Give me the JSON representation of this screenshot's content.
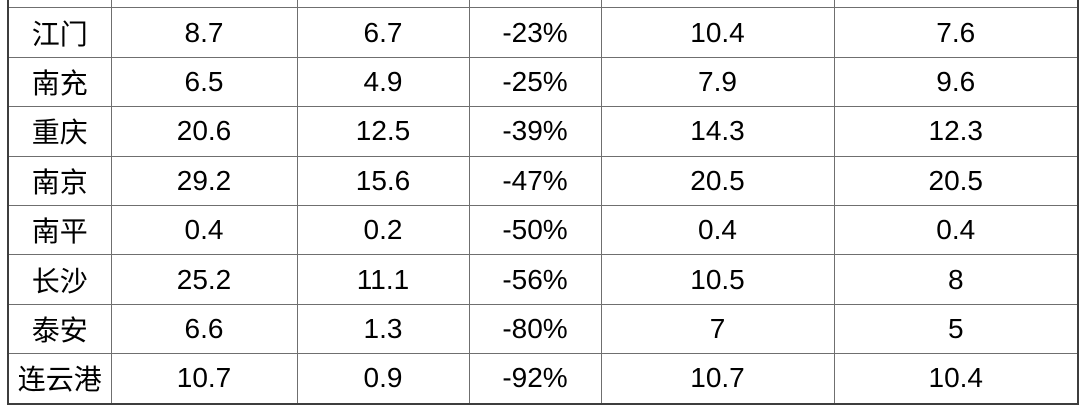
{
  "colors": {
    "green_text": "#2bb45a",
    "black_text": "#000000",
    "grid_line": "#6f6f6f",
    "outer_border": "#3d3d3d",
    "background": "#ffffff"
  },
  "table": {
    "pct_column_index": 3,
    "rows": [
      {
        "cells": [
          "江门",
          "8.7",
          "6.7",
          "-23%",
          "10.4",
          "7.6"
        ],
        "pct_green": false
      },
      {
        "cells": [
          "南充",
          "6.5",
          "4.9",
          "-25%",
          "7.9",
          "9.6"
        ],
        "pct_green": false
      },
      {
        "cells": [
          "重庆",
          "20.6",
          "12.5",
          "-39%",
          "14.3",
          "12.3"
        ],
        "pct_green": false
      },
      {
        "cells": [
          "南京",
          "29.2",
          "15.6",
          "-47%",
          "20.5",
          "20.5"
        ],
        "pct_green": true
      },
      {
        "cells": [
          "南平",
          "0.4",
          "0.2",
          "-50%",
          "0.4",
          "0.4"
        ],
        "pct_green": true
      },
      {
        "cells": [
          "长沙",
          "25.2",
          "11.1",
          "-56%",
          "10.5",
          "8"
        ],
        "pct_green": true
      },
      {
        "cells": [
          "泰安",
          "6.6",
          "1.3",
          "-80%",
          "7",
          "5"
        ],
        "pct_green": true
      },
      {
        "cells": [
          "连云港",
          "10.7",
          "0.9",
          "-92%",
          "10.7",
          "10.4"
        ],
        "pct_green": true
      }
    ]
  }
}
